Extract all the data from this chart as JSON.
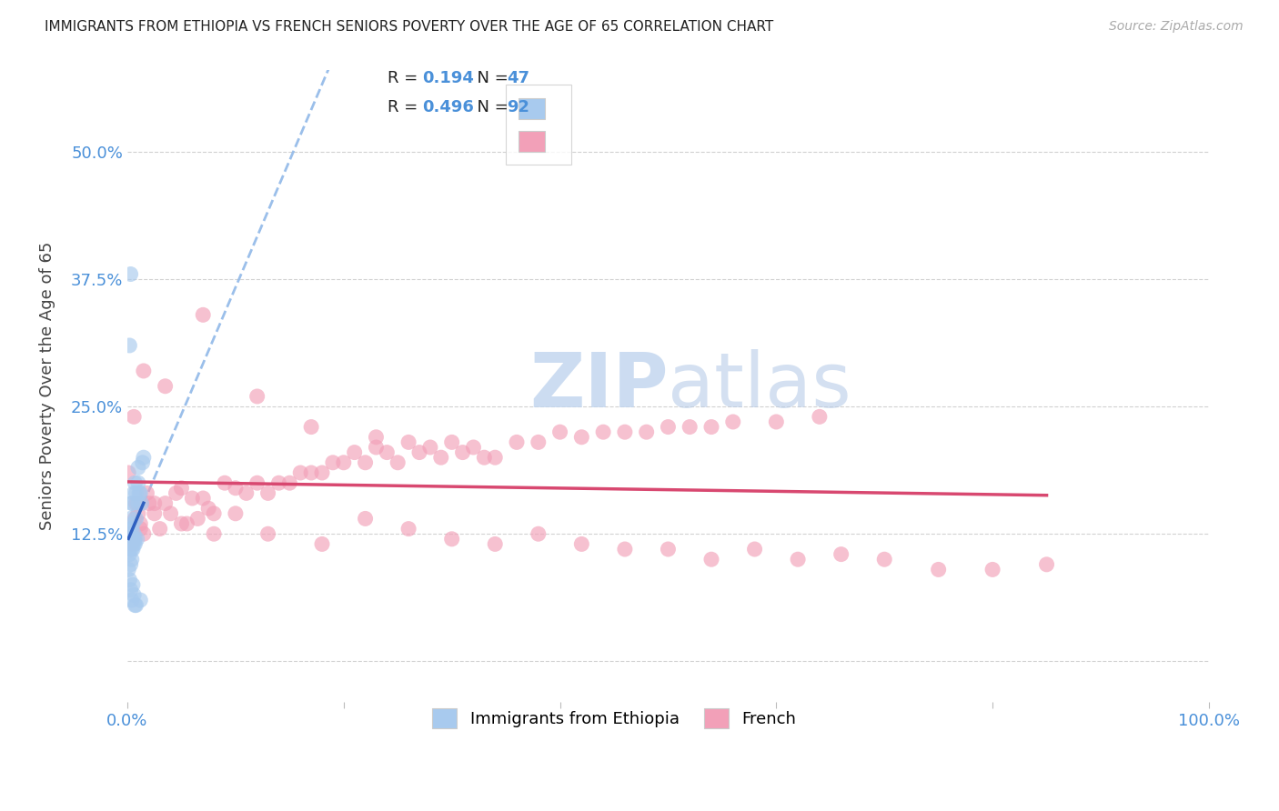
{
  "title": "IMMIGRANTS FROM ETHIOPIA VS FRENCH SENIORS POVERTY OVER THE AGE OF 65 CORRELATION CHART",
  "source": "Source: ZipAtlas.com",
  "ylabel": "Seniors Poverty Over the Age of 65",
  "xlim": [
    0.0,
    1.0
  ],
  "ylim": [
    -0.04,
    0.58
  ],
  "ytick_vals": [
    0.0,
    0.125,
    0.25,
    0.375,
    0.5
  ],
  "ytick_labels": [
    "",
    "12.5%",
    "25.0%",
    "37.5%",
    "50.0%"
  ],
  "xtick_vals": [
    0.0,
    0.2,
    0.4,
    0.6,
    0.8,
    1.0
  ],
  "xtick_labels": [
    "0.0%",
    "",
    "",
    "",
    "",
    "100.0%"
  ],
  "legend1_R": "0.194",
  "legend1_N": "47",
  "legend2_R": "0.496",
  "legend2_N": "92",
  "blue_scatter_color": "#A8CAEE",
  "pink_scatter_color": "#F2A0B8",
  "blue_line_color": "#3060C0",
  "pink_line_color": "#D84870",
  "blue_dash_color": "#90B8E8",
  "grid_color": "#CCCCCC",
  "title_color": "#222222",
  "axis_label_color": "#444444",
  "tick_color": "#4A90D9",
  "source_color": "#AAAAAA",
  "watermark_color": "#C8D8F0",
  "legend_text_color": "#222222",
  "legend_val_color": "#4A90D9",
  "ethiopia_x": [
    0.001,
    0.002,
    0.002,
    0.002,
    0.003,
    0.003,
    0.003,
    0.003,
    0.004,
    0.004,
    0.004,
    0.004,
    0.004,
    0.005,
    0.005,
    0.005,
    0.005,
    0.005,
    0.006,
    0.006,
    0.006,
    0.006,
    0.007,
    0.007,
    0.007,
    0.008,
    0.008,
    0.009,
    0.01,
    0.01,
    0.01,
    0.011,
    0.012,
    0.013,
    0.014,
    0.015,
    0.001,
    0.002,
    0.003,
    0.004,
    0.005,
    0.006,
    0.007,
    0.008,
    0.002,
    0.003,
    0.012
  ],
  "ethiopia_y": [
    0.115,
    0.11,
    0.13,
    0.105,
    0.12,
    0.095,
    0.125,
    0.14,
    0.1,
    0.115,
    0.13,
    0.11,
    0.155,
    0.115,
    0.12,
    0.11,
    0.135,
    0.155,
    0.115,
    0.125,
    0.12,
    0.165,
    0.12,
    0.115,
    0.175,
    0.14,
    0.165,
    0.12,
    0.19,
    0.155,
    0.175,
    0.165,
    0.165,
    0.155,
    0.195,
    0.2,
    0.09,
    0.08,
    0.07,
    0.06,
    0.075,
    0.065,
    0.055,
    0.055,
    0.31,
    0.38,
    0.06
  ],
  "french_x": [
    0.001,
    0.004,
    0.006,
    0.008,
    0.01,
    0.012,
    0.015,
    0.018,
    0.02,
    0.025,
    0.03,
    0.035,
    0.04,
    0.045,
    0.05,
    0.055,
    0.06,
    0.065,
    0.07,
    0.075,
    0.08,
    0.09,
    0.1,
    0.11,
    0.12,
    0.13,
    0.14,
    0.15,
    0.16,
    0.17,
    0.18,
    0.19,
    0.2,
    0.21,
    0.22,
    0.23,
    0.24,
    0.25,
    0.26,
    0.27,
    0.28,
    0.29,
    0.3,
    0.31,
    0.32,
    0.33,
    0.34,
    0.36,
    0.38,
    0.4,
    0.42,
    0.44,
    0.46,
    0.48,
    0.5,
    0.52,
    0.54,
    0.56,
    0.6,
    0.64,
    0.003,
    0.007,
    0.012,
    0.025,
    0.05,
    0.08,
    0.1,
    0.13,
    0.18,
    0.22,
    0.26,
    0.3,
    0.34,
    0.38,
    0.42,
    0.46,
    0.5,
    0.54,
    0.58,
    0.62,
    0.66,
    0.7,
    0.75,
    0.8,
    0.85,
    0.006,
    0.015,
    0.035,
    0.07,
    0.12,
    0.17,
    0.23
  ],
  "french_y": [
    0.185,
    0.115,
    0.12,
    0.155,
    0.145,
    0.135,
    0.125,
    0.165,
    0.155,
    0.145,
    0.13,
    0.155,
    0.145,
    0.165,
    0.17,
    0.135,
    0.16,
    0.14,
    0.16,
    0.15,
    0.145,
    0.175,
    0.17,
    0.165,
    0.175,
    0.165,
    0.175,
    0.175,
    0.185,
    0.185,
    0.185,
    0.195,
    0.195,
    0.205,
    0.195,
    0.21,
    0.205,
    0.195,
    0.215,
    0.205,
    0.21,
    0.2,
    0.215,
    0.205,
    0.21,
    0.2,
    0.2,
    0.215,
    0.215,
    0.225,
    0.22,
    0.225,
    0.225,
    0.225,
    0.23,
    0.23,
    0.23,
    0.235,
    0.235,
    0.24,
    0.125,
    0.14,
    0.13,
    0.155,
    0.135,
    0.125,
    0.145,
    0.125,
    0.115,
    0.14,
    0.13,
    0.12,
    0.115,
    0.125,
    0.115,
    0.11,
    0.11,
    0.1,
    0.11,
    0.1,
    0.105,
    0.1,
    0.09,
    0.09,
    0.095,
    0.24,
    0.285,
    0.27,
    0.34,
    0.26,
    0.23,
    0.22
  ]
}
